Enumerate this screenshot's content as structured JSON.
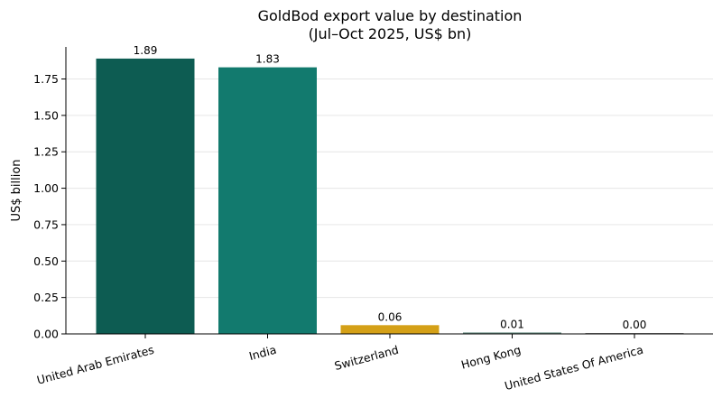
{
  "chart_data": {
    "type": "bar",
    "title": "GoldBod export value by destination",
    "subtitle": "(Jul–Oct 2025, US$ bn)",
    "ylabel": "US$ billion",
    "xlabel": "",
    "categories": [
      "United Arab Emirates",
      "India",
      "Switzerland",
      "Hong Kong",
      "United States Of America"
    ],
    "values": [
      1.89,
      1.83,
      0.06,
      0.01,
      0.0
    ],
    "value_labels": [
      "1.89",
      "1.83",
      "0.06",
      "0.01",
      "0.00"
    ],
    "bar_colors": [
      "#0d5c52",
      "#127a6e",
      "#d4a017",
      "#6a8f86",
      "#888888"
    ],
    "ylim": [
      0,
      1.97
    ],
    "yticks": [
      0.0,
      0.25,
      0.5,
      0.75,
      1.0,
      1.25,
      1.5,
      1.75
    ],
    "ytick_labels": [
      "0.00",
      "0.25",
      "0.50",
      "0.75",
      "1.00",
      "1.25",
      "1.50",
      "1.75"
    ],
    "grid": "horizontal",
    "legend": "none"
  }
}
